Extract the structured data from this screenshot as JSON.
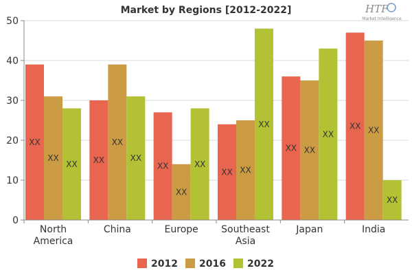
{
  "logo": {
    "main": "HTF",
    "sub": "Market Intelligence"
  },
  "chart_data": {
    "type": "bar",
    "title": "Market by Regions [2012-2022]",
    "categories": [
      [
        "North",
        "America"
      ],
      [
        "China"
      ],
      [
        "Europe"
      ],
      [
        "Southeast",
        "Asia"
      ],
      [
        "Japan"
      ],
      [
        "India"
      ]
    ],
    "series": [
      {
        "name": "2012",
        "color": "#e8654f",
        "values": [
          39,
          30,
          27,
          24,
          36,
          47
        ],
        "labels": [
          "XX",
          "XX",
          "XX",
          "XX",
          "XX",
          "XX"
        ]
      },
      {
        "name": "2016",
        "color": "#cc9c44",
        "values": [
          31,
          39,
          14,
          25,
          35,
          45
        ],
        "labels": [
          "XX",
          "XX",
          "XX",
          "XX",
          "XX",
          "XX"
        ]
      },
      {
        "name": "2022",
        "color": "#b3c234",
        "values": [
          28,
          31,
          28,
          48,
          43,
          10
        ],
        "labels": [
          "XX",
          "XX",
          "XX",
          "XX",
          "XX",
          "XX"
        ]
      }
    ],
    "ylim": [
      0,
      50
    ],
    "yticks": [
      0,
      10,
      20,
      30,
      40,
      50
    ],
    "grid": true,
    "legend_position": "bottom"
  }
}
